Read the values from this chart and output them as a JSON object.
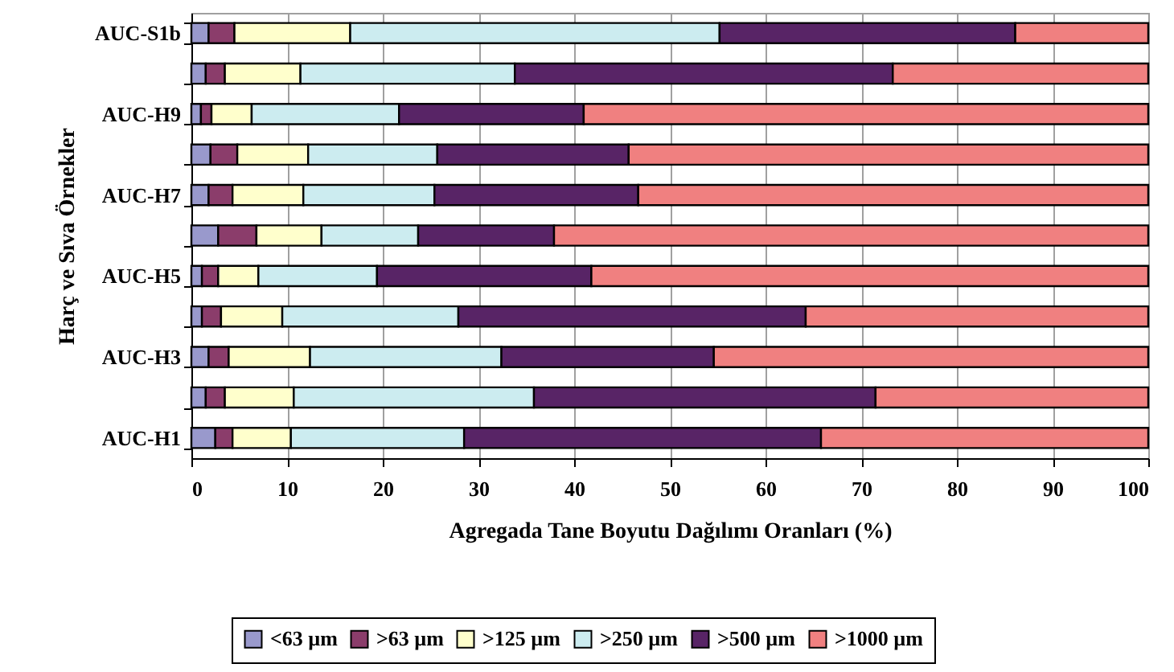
{
  "chart_data": {
    "type": "bar",
    "orientation": "horizontal",
    "stacked": true,
    "categories": [
      "AUC-S1b",
      null,
      "AUC-H9",
      null,
      "AUC-H7",
      null,
      "AUC-H5",
      null,
      "AUC-H3",
      null,
      "AUC-H1"
    ],
    "series": [
      {
        "name": "<63 µm",
        "color": "#9999cc",
        "values": [
          1.8,
          1.5,
          1.0,
          2.0,
          1.8,
          2.8,
          1.1,
          1.1,
          1.8,
          1.5,
          2.5
        ]
      },
      {
        "name": ">63 µm",
        "color": "#8b3d6b",
        "values": [
          2.7,
          2.0,
          1.1,
          2.8,
          2.5,
          4.0,
          1.7,
          2.0,
          2.1,
          2.0,
          1.8
        ]
      },
      {
        "name": ">125 µm",
        "color": "#ffffcc",
        "values": [
          12.1,
          7.9,
          4.2,
          7.4,
          7.4,
          6.8,
          4.2,
          6.4,
          8.5,
          7.2,
          6.1
        ]
      },
      {
        "name": ">250 µm",
        "color": "#ccecf0",
        "values": [
          38.6,
          22.4,
          15.4,
          13.5,
          13.7,
          10.1,
          12.4,
          18.4,
          20.0,
          25.1,
          18.1
        ]
      },
      {
        "name": ">500 µm",
        "color": "#582466",
        "values": [
          30.9,
          39.5,
          19.3,
          20.0,
          21.3,
          14.2,
          22.4,
          36.3,
          22.2,
          35.7,
          37.3
        ]
      },
      {
        "name": ">1000 µm",
        "color": "#f08080",
        "values": [
          13.9,
          26.7,
          59.0,
          54.3,
          53.3,
          62.1,
          58.2,
          35.8,
          45.4,
          28.5,
          34.2
        ]
      }
    ],
    "xlabel": "Agregada Tane Boyutu Dağılımı Oranları (%)",
    "ylabel": "Harç ve Sıva Örnekler",
    "xlim": [
      0,
      100
    ],
    "xticks": [
      0,
      10,
      20,
      30,
      40,
      50,
      60,
      70,
      80,
      90,
      100
    ],
    "grid": "x",
    "legend": "bottom"
  }
}
